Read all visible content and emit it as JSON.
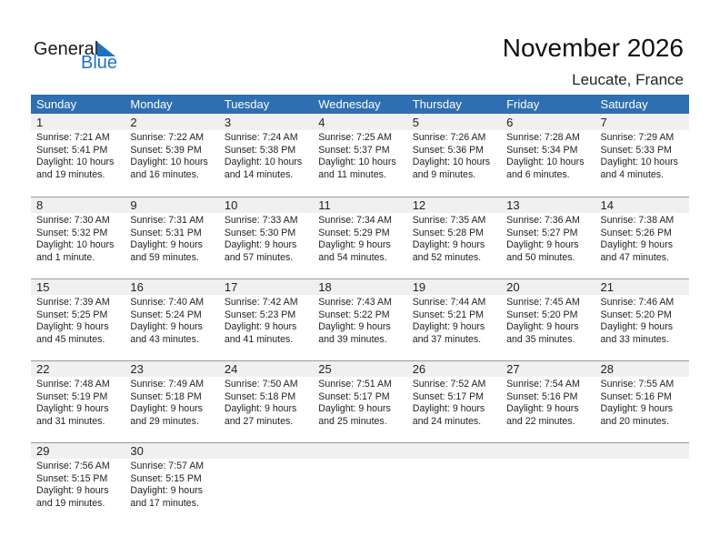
{
  "logo": {
    "general": "General",
    "blue": "Blue",
    "accent": "#1e73be"
  },
  "header": {
    "title": "November 2026",
    "location": "Leucate, France"
  },
  "colors": {
    "header_bg": "#2e6fb1",
    "date_bg": "#f0f0f0"
  },
  "weekdays": [
    "Sunday",
    "Monday",
    "Tuesday",
    "Wednesday",
    "Thursday",
    "Friday",
    "Saturday"
  ],
  "leading_empty": 0,
  "days": [
    {
      "day": "1",
      "sunrise": "Sunrise: 7:21 AM",
      "sunset": "Sunset: 5:41 PM",
      "daylight1": "Daylight: 10 hours",
      "daylight2": "and 19 minutes."
    },
    {
      "day": "2",
      "sunrise": "Sunrise: 7:22 AM",
      "sunset": "Sunset: 5:39 PM",
      "daylight1": "Daylight: 10 hours",
      "daylight2": "and 16 minutes."
    },
    {
      "day": "3",
      "sunrise": "Sunrise: 7:24 AM",
      "sunset": "Sunset: 5:38 PM",
      "daylight1": "Daylight: 10 hours",
      "daylight2": "and 14 minutes."
    },
    {
      "day": "4",
      "sunrise": "Sunrise: 7:25 AM",
      "sunset": "Sunset: 5:37 PM",
      "daylight1": "Daylight: 10 hours",
      "daylight2": "and 11 minutes."
    },
    {
      "day": "5",
      "sunrise": "Sunrise: 7:26 AM",
      "sunset": "Sunset: 5:36 PM",
      "daylight1": "Daylight: 10 hours",
      "daylight2": "and 9 minutes."
    },
    {
      "day": "6",
      "sunrise": "Sunrise: 7:28 AM",
      "sunset": "Sunset: 5:34 PM",
      "daylight1": "Daylight: 10 hours",
      "daylight2": "and 6 minutes."
    },
    {
      "day": "7",
      "sunrise": "Sunrise: 7:29 AM",
      "sunset": "Sunset: 5:33 PM",
      "daylight1": "Daylight: 10 hours",
      "daylight2": "and 4 minutes."
    },
    {
      "day": "8",
      "sunrise": "Sunrise: 7:30 AM",
      "sunset": "Sunset: 5:32 PM",
      "daylight1": "Daylight: 10 hours",
      "daylight2": "and 1 minute."
    },
    {
      "day": "9",
      "sunrise": "Sunrise: 7:31 AM",
      "sunset": "Sunset: 5:31 PM",
      "daylight1": "Daylight: 9 hours",
      "daylight2": "and 59 minutes."
    },
    {
      "day": "10",
      "sunrise": "Sunrise: 7:33 AM",
      "sunset": "Sunset: 5:30 PM",
      "daylight1": "Daylight: 9 hours",
      "daylight2": "and 57 minutes."
    },
    {
      "day": "11",
      "sunrise": "Sunrise: 7:34 AM",
      "sunset": "Sunset: 5:29 PM",
      "daylight1": "Daylight: 9 hours",
      "daylight2": "and 54 minutes."
    },
    {
      "day": "12",
      "sunrise": "Sunrise: 7:35 AM",
      "sunset": "Sunset: 5:28 PM",
      "daylight1": "Daylight: 9 hours",
      "daylight2": "and 52 minutes."
    },
    {
      "day": "13",
      "sunrise": "Sunrise: 7:36 AM",
      "sunset": "Sunset: 5:27 PM",
      "daylight1": "Daylight: 9 hours",
      "daylight2": "and 50 minutes."
    },
    {
      "day": "14",
      "sunrise": "Sunrise: 7:38 AM",
      "sunset": "Sunset: 5:26 PM",
      "daylight1": "Daylight: 9 hours",
      "daylight2": "and 47 minutes."
    },
    {
      "day": "15",
      "sunrise": "Sunrise: 7:39 AM",
      "sunset": "Sunset: 5:25 PM",
      "daylight1": "Daylight: 9 hours",
      "daylight2": "and 45 minutes."
    },
    {
      "day": "16",
      "sunrise": "Sunrise: 7:40 AM",
      "sunset": "Sunset: 5:24 PM",
      "daylight1": "Daylight: 9 hours",
      "daylight2": "and 43 minutes."
    },
    {
      "day": "17",
      "sunrise": "Sunrise: 7:42 AM",
      "sunset": "Sunset: 5:23 PM",
      "daylight1": "Daylight: 9 hours",
      "daylight2": "and 41 minutes."
    },
    {
      "day": "18",
      "sunrise": "Sunrise: 7:43 AM",
      "sunset": "Sunset: 5:22 PM",
      "daylight1": "Daylight: 9 hours",
      "daylight2": "and 39 minutes."
    },
    {
      "day": "19",
      "sunrise": "Sunrise: 7:44 AM",
      "sunset": "Sunset: 5:21 PM",
      "daylight1": "Daylight: 9 hours",
      "daylight2": "and 37 minutes."
    },
    {
      "day": "20",
      "sunrise": "Sunrise: 7:45 AM",
      "sunset": "Sunset: 5:20 PM",
      "daylight1": "Daylight: 9 hours",
      "daylight2": "and 35 minutes."
    },
    {
      "day": "21",
      "sunrise": "Sunrise: 7:46 AM",
      "sunset": "Sunset: 5:20 PM",
      "daylight1": "Daylight: 9 hours",
      "daylight2": "and 33 minutes."
    },
    {
      "day": "22",
      "sunrise": "Sunrise: 7:48 AM",
      "sunset": "Sunset: 5:19 PM",
      "daylight1": "Daylight: 9 hours",
      "daylight2": "and 31 minutes."
    },
    {
      "day": "23",
      "sunrise": "Sunrise: 7:49 AM",
      "sunset": "Sunset: 5:18 PM",
      "daylight1": "Daylight: 9 hours",
      "daylight2": "and 29 minutes."
    },
    {
      "day": "24",
      "sunrise": "Sunrise: 7:50 AM",
      "sunset": "Sunset: 5:18 PM",
      "daylight1": "Daylight: 9 hours",
      "daylight2": "and 27 minutes."
    },
    {
      "day": "25",
      "sunrise": "Sunrise: 7:51 AM",
      "sunset": "Sunset: 5:17 PM",
      "daylight1": "Daylight: 9 hours",
      "daylight2": "and 25 minutes."
    },
    {
      "day": "26",
      "sunrise": "Sunrise: 7:52 AM",
      "sunset": "Sunset: 5:17 PM",
      "daylight1": "Daylight: 9 hours",
      "daylight2": "and 24 minutes."
    },
    {
      "day": "27",
      "sunrise": "Sunrise: 7:54 AM",
      "sunset": "Sunset: 5:16 PM",
      "daylight1": "Daylight: 9 hours",
      "daylight2": "and 22 minutes."
    },
    {
      "day": "28",
      "sunrise": "Sunrise: 7:55 AM",
      "sunset": "Sunset: 5:16 PM",
      "daylight1": "Daylight: 9 hours",
      "daylight2": "and 20 minutes."
    },
    {
      "day": "29",
      "sunrise": "Sunrise: 7:56 AM",
      "sunset": "Sunset: 5:15 PM",
      "daylight1": "Daylight: 9 hours",
      "daylight2": "and 19 minutes."
    },
    {
      "day": "30",
      "sunrise": "Sunrise: 7:57 AM",
      "sunset": "Sunset: 5:15 PM",
      "daylight1": "Daylight: 9 hours",
      "daylight2": "and 17 minutes."
    }
  ]
}
